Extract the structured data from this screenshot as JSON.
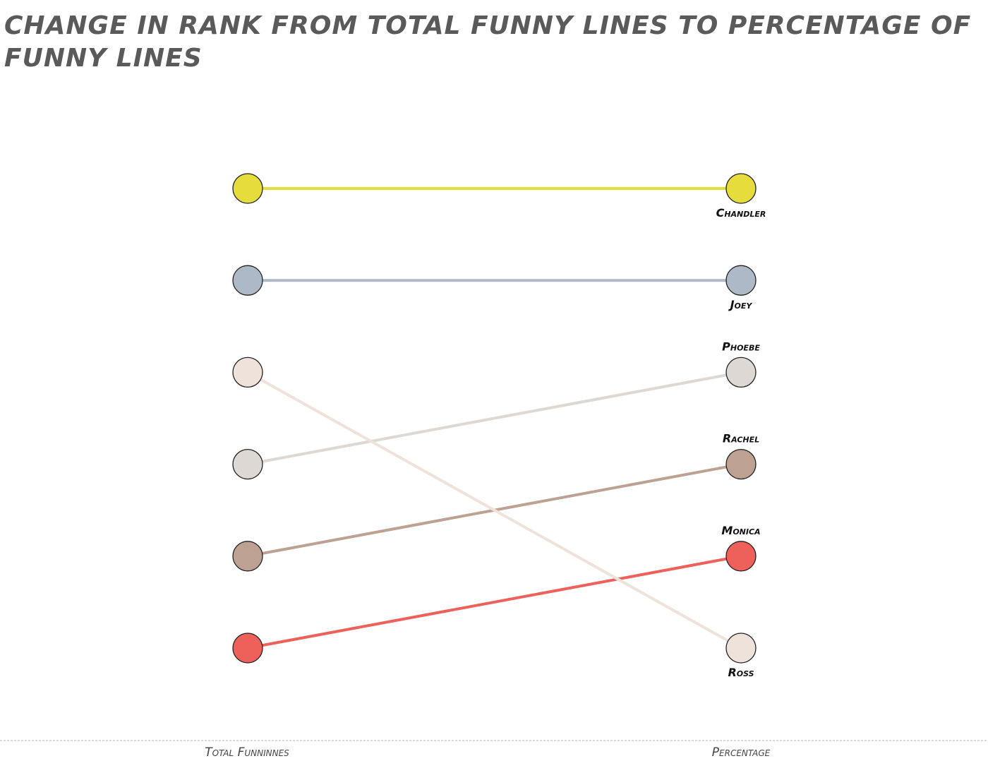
{
  "chart_data": {
    "type": "line",
    "title": "Change in rank from total funny lines to percentage of funny lines",
    "chart_subtype": "slope",
    "x": [
      "Total Funninnes",
      "Percentage"
    ],
    "y_axis": "rank (1 = top)",
    "ylim": [
      1,
      6
    ],
    "y_inverted": true,
    "grid": false,
    "legend": "none (series names printed at right end)",
    "series": [
      {
        "name": "Chandler",
        "values": [
          1,
          1
        ],
        "color": "#e6dc3c",
        "label_position": "below"
      },
      {
        "name": "Joey",
        "values": [
          2,
          2
        ],
        "color": "#aeb9c8",
        "label_position": "below"
      },
      {
        "name": "Phoebe",
        "values": [
          4,
          3
        ],
        "color": "#ddd8d4",
        "label_position": "above"
      },
      {
        "name": "Rachel",
        "values": [
          5,
          4
        ],
        "color": "#bda193",
        "label_position": "above"
      },
      {
        "name": "Monica",
        "values": [
          6,
          5
        ],
        "color": "#ed615a",
        "label_position": "above"
      },
      {
        "name": "Ross",
        "values": [
          3,
          6
        ],
        "color": "#eee2da",
        "label_position": "below"
      }
    ]
  }
}
